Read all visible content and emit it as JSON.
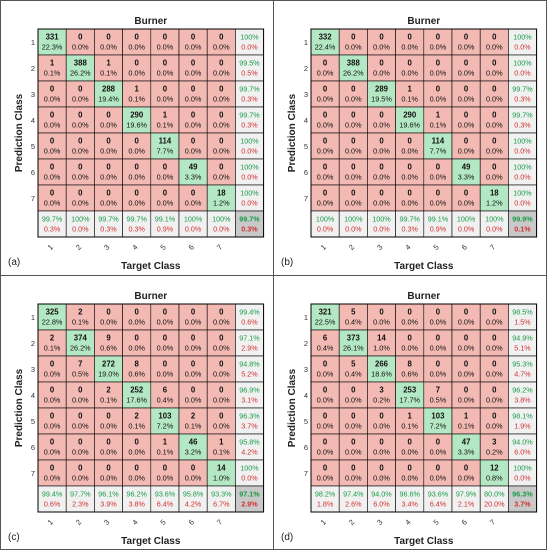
{
  "colors": {
    "correct": "#b4e8c4",
    "wrong": "#f3b9b3",
    "summary": "#f1f1f1",
    "total": "#c9c9c9",
    "green_text": "#169c46",
    "red_text": "#d32f2f",
    "grid": "#000000"
  },
  "chart_data": [
    {
      "type": "heatmap",
      "panel_label": "(a)",
      "title": "Burner",
      "xlabel": "Target Class",
      "ylabel": "Prediction Class",
      "classes": [
        "1",
        "2",
        "3",
        "4",
        "5",
        "6",
        "7"
      ],
      "counts": [
        [
          331,
          0,
          0,
          0,
          0,
          0,
          0
        ],
        [
          1,
          388,
          1,
          0,
          0,
          0,
          0
        ],
        [
          0,
          0,
          288,
          1,
          0,
          0,
          0
        ],
        [
          0,
          0,
          0,
          290,
          1,
          0,
          0
        ],
        [
          0,
          0,
          0,
          0,
          114,
          0,
          0
        ],
        [
          0,
          0,
          0,
          0,
          0,
          49,
          0
        ],
        [
          0,
          0,
          0,
          0,
          0,
          0,
          18
        ]
      ],
      "percents": [
        [
          "22.3%",
          "0.0%",
          "0.0%",
          "0.0%",
          "0.0%",
          "0.0%",
          "0.0%"
        ],
        [
          "0.1%",
          "26.2%",
          "0.1%",
          "0.0%",
          "0.0%",
          "0.0%",
          "0.0%"
        ],
        [
          "0.0%",
          "0.0%",
          "19.4%",
          "0.1%",
          "0.0%",
          "0.0%",
          "0.0%"
        ],
        [
          "0.0%",
          "0.0%",
          "0.0%",
          "19.6%",
          "0.1%",
          "0.0%",
          "0.0%"
        ],
        [
          "0.0%",
          "0.0%",
          "0.0%",
          "0.0%",
          "7.7%",
          "0.0%",
          "0.0%"
        ],
        [
          "0.0%",
          "0.0%",
          "0.0%",
          "0.0%",
          "0.0%",
          "3.3%",
          "0.0%"
        ],
        [
          "0.0%",
          "0.0%",
          "0.0%",
          "0.0%",
          "0.0%",
          "0.0%",
          "1.2%"
        ]
      ],
      "row_summary": [
        [
          "100%",
          "0.0%"
        ],
        [
          "99.5%",
          "0.5%"
        ],
        [
          "99.7%",
          "0.3%"
        ],
        [
          "99.7%",
          "0.3%"
        ],
        [
          "100%",
          "0.0%"
        ],
        [
          "100%",
          "0.0%"
        ],
        [
          "100%",
          "0.0%"
        ]
      ],
      "col_summary": [
        [
          "99.7%",
          "0.3%"
        ],
        [
          "100%",
          "0.0%"
        ],
        [
          "99.7%",
          "0.3%"
        ],
        [
          "99.7%",
          "0.3%"
        ],
        [
          "99.1%",
          "0.9%"
        ],
        [
          "100%",
          "0.0%"
        ],
        [
          "100%",
          "0.0%"
        ]
      ],
      "overall": [
        "99.7%",
        "0.3%"
      ]
    },
    {
      "type": "heatmap",
      "panel_label": "(b)",
      "title": "Burner",
      "xlabel": "Target Class",
      "ylabel": "Prediction Class",
      "classes": [
        "1",
        "2",
        "3",
        "4",
        "5",
        "6",
        "7"
      ],
      "counts": [
        [
          332,
          0,
          0,
          0,
          0,
          0,
          0
        ],
        [
          0,
          388,
          0,
          0,
          0,
          0,
          0
        ],
        [
          0,
          0,
          289,
          1,
          0,
          0,
          0
        ],
        [
          0,
          0,
          0,
          290,
          1,
          0,
          0
        ],
        [
          0,
          0,
          0,
          0,
          114,
          0,
          0
        ],
        [
          0,
          0,
          0,
          0,
          0,
          49,
          0
        ],
        [
          0,
          0,
          0,
          0,
          0,
          0,
          18
        ]
      ],
      "percents": [
        [
          "22.4%",
          "0.0%",
          "0.0%",
          "0.0%",
          "0.0%",
          "0.0%",
          "0.0%"
        ],
        [
          "0.0%",
          "26.2%",
          "0.0%",
          "0.0%",
          "0.0%",
          "0.0%",
          "0.0%"
        ],
        [
          "0.0%",
          "0.0%",
          "19.5%",
          "0.1%",
          "0.0%",
          "0.0%",
          "0.0%"
        ],
        [
          "0.0%",
          "0.0%",
          "0.0%",
          "19.6%",
          "0.1%",
          "0.0%",
          "0.0%"
        ],
        [
          "0.0%",
          "0.0%",
          "0.0%",
          "0.0%",
          "7.7%",
          "0.0%",
          "0.0%"
        ],
        [
          "0.0%",
          "0.0%",
          "0.0%",
          "0.0%",
          "0.0%",
          "3.3%",
          "0.0%"
        ],
        [
          "0.0%",
          "0.0%",
          "0.0%",
          "0.0%",
          "0.0%",
          "0.0%",
          "1.2%"
        ]
      ],
      "row_summary": [
        [
          "100%",
          "0.0%"
        ],
        [
          "100%",
          "0.0%"
        ],
        [
          "99.7%",
          "0.3%"
        ],
        [
          "99.7%",
          "0.3%"
        ],
        [
          "100%",
          "0.0%"
        ],
        [
          "100%",
          "0.0%"
        ],
        [
          "100%",
          "0.0%"
        ]
      ],
      "col_summary": [
        [
          "100%",
          "0.0%"
        ],
        [
          "100%",
          "0.0%"
        ],
        [
          "100%",
          "0.0%"
        ],
        [
          "99.7%",
          "0.3%"
        ],
        [
          "99.1%",
          "0.9%"
        ],
        [
          "100%",
          "0.0%"
        ],
        [
          "100%",
          "0.0%"
        ]
      ],
      "overall": [
        "99.9%",
        "0.1%"
      ]
    },
    {
      "type": "heatmap",
      "panel_label": "(c)",
      "title": "Burner",
      "xlabel": "Target Class",
      "ylabel": "Prediction Class",
      "classes": [
        "1",
        "2",
        "3",
        "4",
        "5",
        "6",
        "7"
      ],
      "counts": [
        [
          325,
          2,
          0,
          0,
          0,
          0,
          0
        ],
        [
          2,
          374,
          9,
          0,
          0,
          0,
          0
        ],
        [
          0,
          7,
          272,
          8,
          0,
          0,
          0
        ],
        [
          0,
          0,
          2,
          252,
          6,
          0,
          0
        ],
        [
          0,
          0,
          0,
          2,
          103,
          2,
          0
        ],
        [
          0,
          0,
          0,
          0,
          1,
          46,
          1
        ],
        [
          0,
          0,
          0,
          0,
          0,
          0,
          14
        ]
      ],
      "percents": [
        [
          "22.8%",
          "0.1%",
          "0.0%",
          "0.0%",
          "0.0%",
          "0.0%",
          "0.0%"
        ],
        [
          "0.1%",
          "26.2%",
          "0.6%",
          "0.0%",
          "0.0%",
          "0.0%",
          "0.0%"
        ],
        [
          "0.0%",
          "0.5%",
          "19.0%",
          "0.6%",
          "0.0%",
          "0.0%",
          "0.0%"
        ],
        [
          "0.0%",
          "0.0%",
          "0.1%",
          "17.6%",
          "0.4%",
          "0.0%",
          "0.0%"
        ],
        [
          "0.0%",
          "0.0%",
          "0.0%",
          "0.1%",
          "7.2%",
          "0.1%",
          "0.0%"
        ],
        [
          "0.0%",
          "0.0%",
          "0.0%",
          "0.0%",
          "0.1%",
          "3.2%",
          "0.1%"
        ],
        [
          "0.0%",
          "0.0%",
          "0.0%",
          "0.0%",
          "0.0%",
          "0.0%",
          "1.0%"
        ]
      ],
      "row_summary": [
        [
          "99.4%",
          "0.6%"
        ],
        [
          "97.1%",
          "2.9%"
        ],
        [
          "94.8%",
          "5.2%"
        ],
        [
          "96.9%",
          "3.1%"
        ],
        [
          "96.3%",
          "3.7%"
        ],
        [
          "95.8%",
          "4.2%"
        ],
        [
          "100%",
          "0.0%"
        ]
      ],
      "col_summary": [
        [
          "99.4%",
          "0.6%"
        ],
        [
          "97.7%",
          "2.3%"
        ],
        [
          "96.1%",
          "3.9%"
        ],
        [
          "96.2%",
          "3.8%"
        ],
        [
          "93.6%",
          "6.4%"
        ],
        [
          "95.8%",
          "4.2%"
        ],
        [
          "93.3%",
          "6.7%"
        ]
      ],
      "overall": [
        "97.1%",
        "2.9%"
      ]
    },
    {
      "type": "heatmap",
      "panel_label": "(d)",
      "title": "Burner",
      "xlabel": "Target Class",
      "ylabel": "Prediction Class",
      "classes": [
        "1",
        "2",
        "3",
        "4",
        "5",
        "6",
        "7"
      ],
      "counts": [
        [
          321,
          5,
          0,
          0,
          0,
          0,
          0
        ],
        [
          6,
          373,
          14,
          0,
          0,
          0,
          0
        ],
        [
          0,
          5,
          266,
          8,
          0,
          0,
          0
        ],
        [
          0,
          0,
          3,
          253,
          7,
          0,
          0
        ],
        [
          0,
          0,
          0,
          1,
          103,
          1,
          0
        ],
        [
          0,
          0,
          0,
          0,
          0,
          47,
          3
        ],
        [
          0,
          0,
          0,
          0,
          0,
          0,
          12
        ]
      ],
      "percents": [
        [
          "22.5%",
          "0.4%",
          "0.0%",
          "0.0%",
          "0.0%",
          "0.0%",
          "0.0%"
        ],
        [
          "0.4%",
          "26.1%",
          "1.0%",
          "0.0%",
          "0.0%",
          "0.0%",
          "0.0%"
        ],
        [
          "0.0%",
          "0.4%",
          "18.6%",
          "0.6%",
          "0.0%",
          "0.0%",
          "0.0%"
        ],
        [
          "0.0%",
          "0.0%",
          "0.2%",
          "17.7%",
          "0.5%",
          "0.0%",
          "0.0%"
        ],
        [
          "0.0%",
          "0.0%",
          "0.0%",
          "0.1%",
          "7.2%",
          "0.1%",
          "0.0%"
        ],
        [
          "0.0%",
          "0.0%",
          "0.0%",
          "0.0%",
          "0.0%",
          "3.3%",
          "0.2%"
        ],
        [
          "0.0%",
          "0.0%",
          "0.0%",
          "0.0%",
          "0.0%",
          "0.0%",
          "0.8%"
        ]
      ],
      "row_summary": [
        [
          "98.5%",
          "1.5%"
        ],
        [
          "94.9%",
          "5.1%"
        ],
        [
          "95.3%",
          "4.7%"
        ],
        [
          "96.2%",
          "3.8%"
        ],
        [
          "98.1%",
          "1.9%"
        ],
        [
          "94.0%",
          "6.0%"
        ],
        [
          "100%",
          "0.0%"
        ]
      ],
      "col_summary": [
        [
          "98.2%",
          "1.8%"
        ],
        [
          "97.4%",
          "2.6%"
        ],
        [
          "94.0%",
          "6.0%"
        ],
        [
          "96.6%",
          "3.4%"
        ],
        [
          "93.6%",
          "6.4%"
        ],
        [
          "97.9%",
          "2.1%"
        ],
        [
          "80.0%",
          "20.0%"
        ]
      ],
      "overall": [
        "96.3%",
        "3.7%"
      ]
    }
  ]
}
